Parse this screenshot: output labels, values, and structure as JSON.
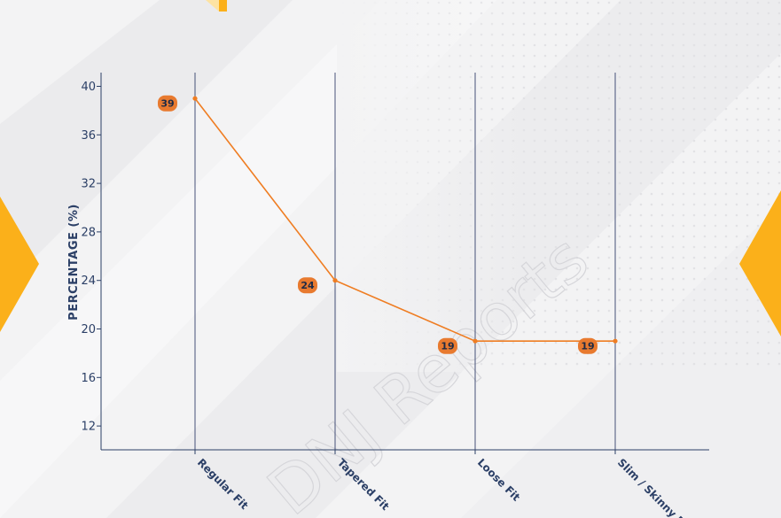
{
  "watermark_text": "DNJ Reports",
  "colors": {
    "line": "#ef7d22",
    "label_bg": "#e87a2f",
    "label_text": "#1e2a45",
    "axis": "#2b3f66",
    "gridline": "#34406b",
    "accent_yellow": "#fbb01a"
  },
  "chart_data": {
    "type": "line",
    "categories": [
      "Regular Fit",
      "Tapered Fit",
      "Loose Fit",
      "Slim / Skinny Fit"
    ],
    "values": [
      39,
      24,
      19,
      19
    ],
    "data_labels": [
      "39",
      "24",
      "19",
      "19"
    ],
    "ylabel": "PERCENTAGE (%)",
    "xlabel": "",
    "ylim": [
      10,
      41
    ],
    "yticks": [
      12,
      16,
      20,
      24,
      28,
      32,
      36,
      40
    ],
    "ytick_labels": [
      "12",
      "16",
      "20",
      "24",
      "28",
      "32",
      "36",
      "40"
    ],
    "grid": "vertical"
  }
}
